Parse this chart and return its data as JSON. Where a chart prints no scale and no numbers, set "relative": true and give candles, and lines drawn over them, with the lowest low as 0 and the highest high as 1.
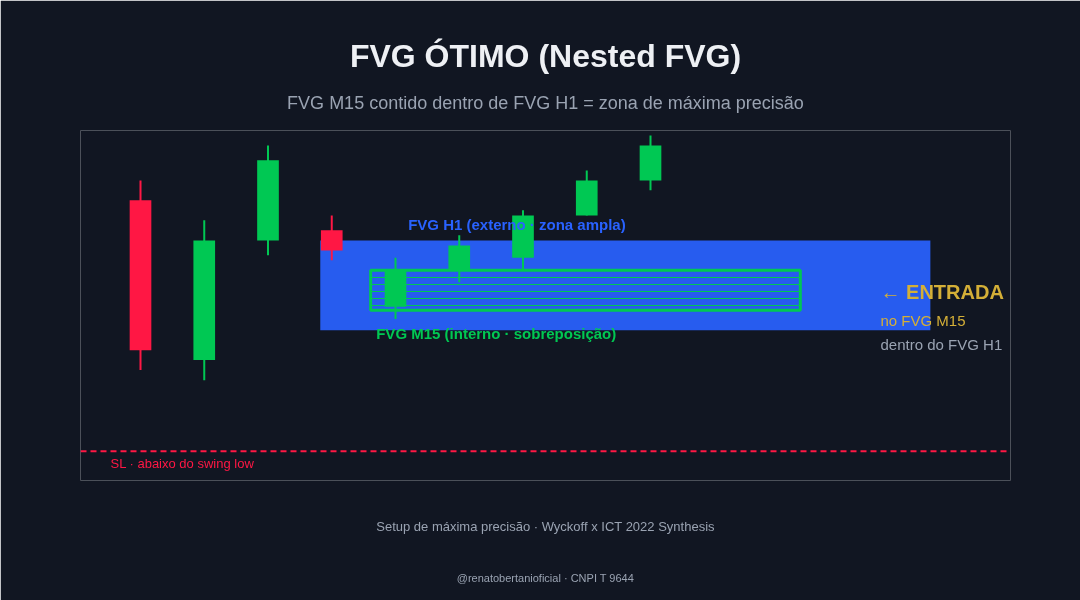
{
  "chart_data": {
    "type": "candlestick",
    "title": "FVG ÓTIMO (Nested FVG)",
    "subtitle": "FVG M15 contido dentro de FVG H1 = zona de máxima precisão",
    "relative": true,
    "categories": [
      null,
      null,
      null,
      null,
      null,
      null,
      null,
      null,
      null
    ],
    "ohlc": [
      [
        0.735,
        0.816,
        0.041,
        0.122
      ],
      [
        0.082,
        0.653,
        0.0,
        0.571
      ],
      [
        0.571,
        0.959,
        0.51,
        0.898
      ],
      [
        0.612,
        0.673,
        0.49,
        0.53
      ],
      [
        0.3,
        0.5,
        0.25,
        0.45
      ],
      [
        0.45,
        0.592,
        0.4,
        0.55
      ],
      [
        0.5,
        0.694,
        0.45,
        0.673
      ],
      [
        0.673,
        0.857,
        0.673,
        0.816
      ],
      [
        0.816,
        1.0,
        0.776,
        0.959
      ]
    ],
    "tick_labels": false,
    "bands": [
      {
        "axis": "y",
        "from": 0.204,
        "to": 0.571,
        "label": "FVG H1 (externo · zona ampla)",
        "color": "#2962ff"
      },
      {
        "axis": "y",
        "from": 0.286,
        "to": 0.449,
        "label": "FVG M15 (interno · sobreposição)",
        "color": "#00c853"
      }
    ],
    "ref_lines": [
      {
        "axis": "y",
        "value": -0.29,
        "label": "SL · abaixo do swing low",
        "color": "#ff1744",
        "line_style": "dashed"
      }
    ],
    "annotations": [
      "← ENTRADA",
      "no FVG M15",
      "dentro do FVG H1",
      "Setup de máxima precisão · Wyckoff x ICT 2022 Synthesis",
      "@renatobertanioficial · CNPI T 9644"
    ]
  }
}
